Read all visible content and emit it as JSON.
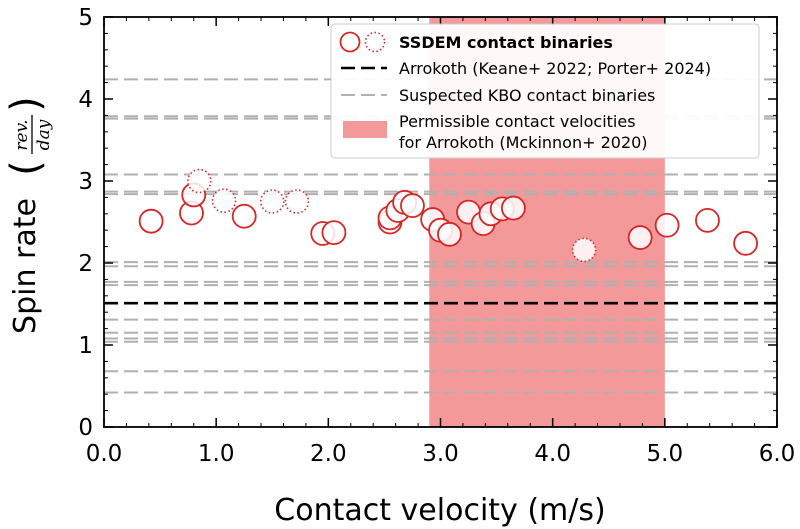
{
  "chart_data": {
    "type": "scatter",
    "xlabel": "Contact velocity (m/s)",
    "ylabel_prefix": "Spin rate",
    "ylabel_frac_num": "rev.",
    "ylabel_frac_den": "day",
    "xlim": [
      0.0,
      6.0
    ],
    "ylim": [
      0,
      5
    ],
    "x_ticks": [
      0.0,
      1.0,
      2.0,
      3.0,
      4.0,
      5.0,
      6.0
    ],
    "x_tick_labels": [
      "0.0",
      "1.0",
      "2.0",
      "3.0",
      "4.0",
      "5.0",
      "6.0"
    ],
    "x_minor_step": 0.2,
    "y_ticks": [
      0,
      1,
      2,
      3,
      4,
      5
    ],
    "y_tick_labels": [
      "0",
      "1",
      "2",
      "3",
      "4",
      "5"
    ],
    "y_minor_step": 0.2,
    "shaded_region": {
      "label": "Permissible contact velocities",
      "label_line2": "for Arrokoth (Mckinnon+ 2020)",
      "x_range": [
        2.9,
        5.0
      ],
      "color": "#f08080"
    },
    "reference_line": {
      "label": "Arrokoth (Keane+ 2022; Porter+ 2024)",
      "y": 1.51,
      "color": "#000000"
    },
    "suspected_lines": {
      "label": "Suspected KBO contact binaries",
      "y_values": [
        0.42,
        0.68,
        1.04,
        1.08,
        1.15,
        1.31,
        1.73,
        1.77,
        1.96,
        2.01,
        2.84,
        2.87,
        3.08,
        3.76,
        3.79,
        4.24
      ],
      "color": "#b0b0b0"
    },
    "series": [
      {
        "name": "SSDEM contact binaries",
        "style": "solid",
        "color": "#d62728",
        "points": [
          {
            "x": 0.42,
            "y": 2.51
          },
          {
            "x": 0.78,
            "y": 2.61
          },
          {
            "x": 0.8,
            "y": 2.83
          },
          {
            "x": 1.25,
            "y": 2.57
          },
          {
            "x": 1.95,
            "y": 2.36
          },
          {
            "x": 2.05,
            "y": 2.37
          },
          {
            "x": 2.55,
            "y": 2.5
          },
          {
            "x": 2.55,
            "y": 2.55
          },
          {
            "x": 2.62,
            "y": 2.64
          },
          {
            "x": 2.68,
            "y": 2.74
          },
          {
            "x": 2.75,
            "y": 2.7
          },
          {
            "x": 2.93,
            "y": 2.53
          },
          {
            "x": 3.0,
            "y": 2.4
          },
          {
            "x": 3.08,
            "y": 2.35
          },
          {
            "x": 3.25,
            "y": 2.62
          },
          {
            "x": 3.38,
            "y": 2.48
          },
          {
            "x": 3.45,
            "y": 2.6
          },
          {
            "x": 3.55,
            "y": 2.66
          },
          {
            "x": 3.65,
            "y": 2.67
          },
          {
            "x": 4.78,
            "y": 2.31
          },
          {
            "x": 5.02,
            "y": 2.46
          },
          {
            "x": 5.38,
            "y": 2.52
          },
          {
            "x": 5.72,
            "y": 2.24
          }
        ]
      },
      {
        "name": "SSDEM contact binaries (dotted)",
        "style": "dotted",
        "color": "#d62728",
        "points": [
          {
            "x": 0.85,
            "y": 3.0
          },
          {
            "x": 1.07,
            "y": 2.76
          },
          {
            "x": 1.5,
            "y": 2.75
          },
          {
            "x": 1.72,
            "y": 2.75
          },
          {
            "x": 4.28,
            "y": 2.16
          }
        ]
      }
    ]
  }
}
